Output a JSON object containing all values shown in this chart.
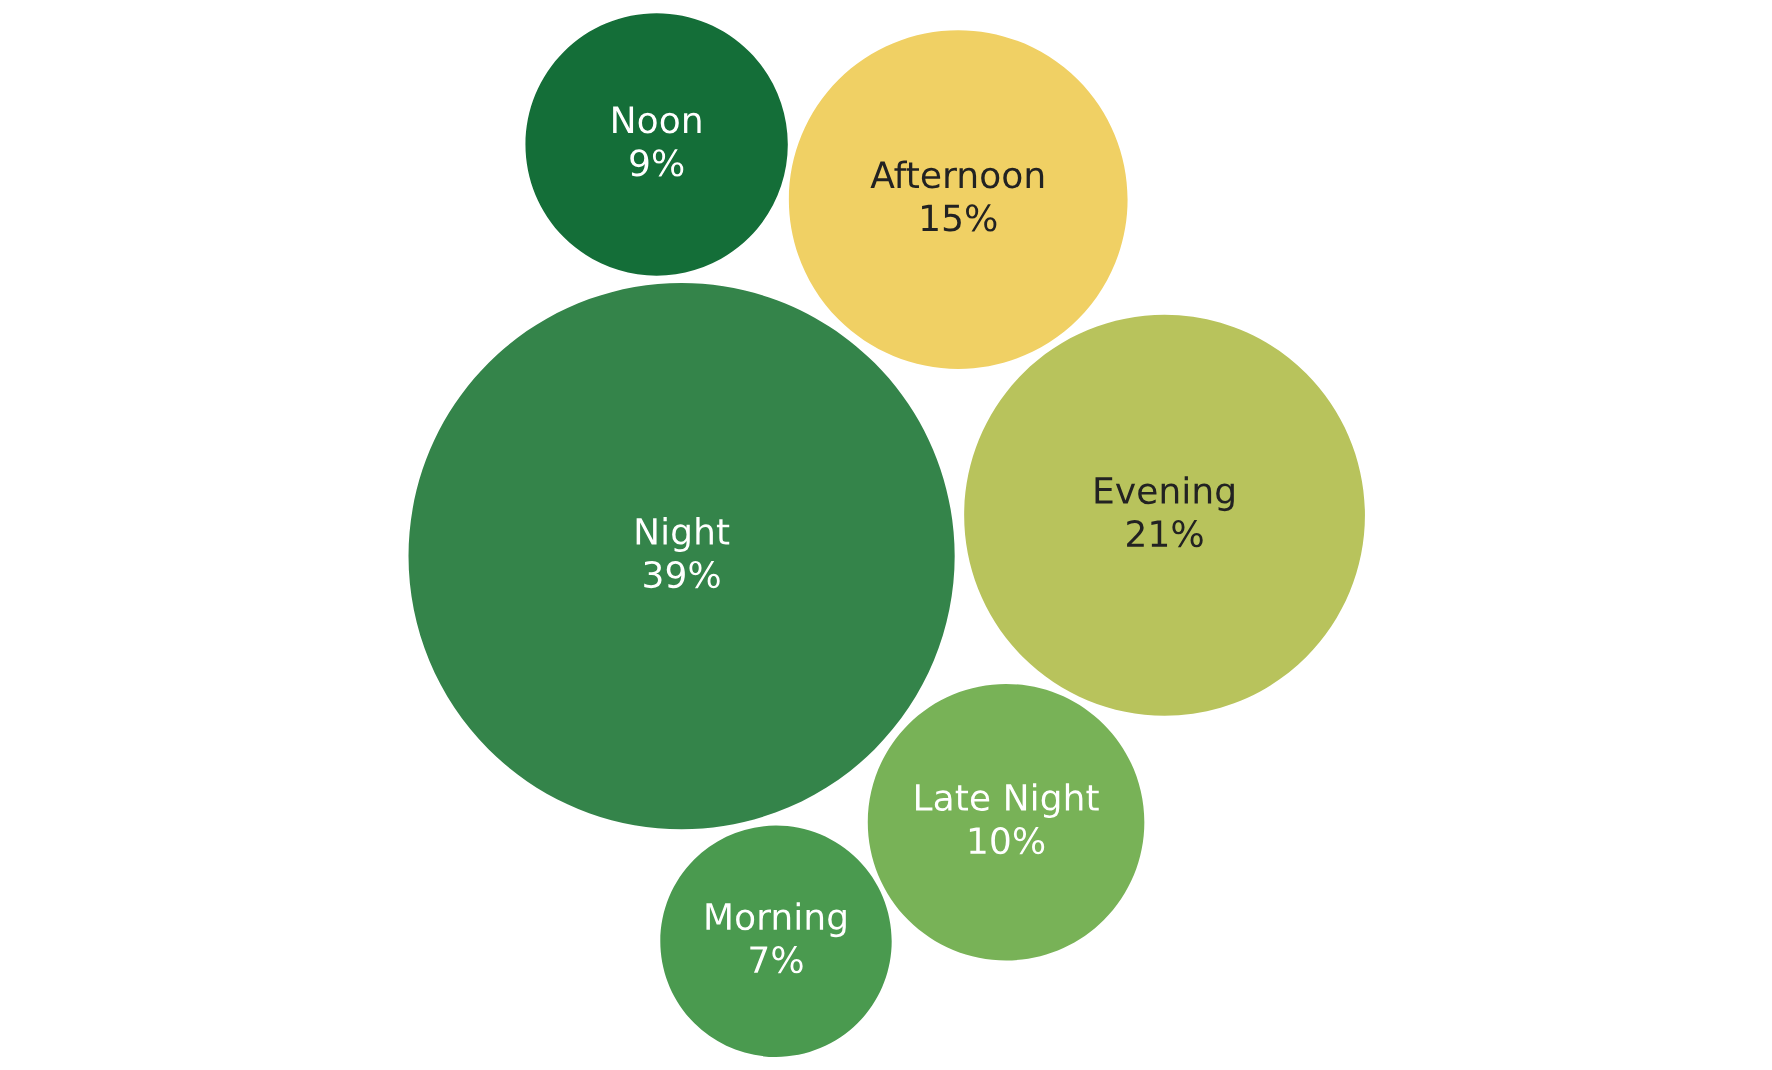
{
  "chart_data": {
    "type": "other",
    "categories": [
      "Night",
      "Evening",
      "Afternoon",
      "Late Night",
      "Noon",
      "Morning"
    ],
    "values": [
      39,
      21,
      15,
      10,
      9,
      7
    ],
    "value_labels": [
      "39%",
      "21%",
      "15%",
      "10%",
      "9%",
      "7%"
    ],
    "colors": [
      "#34844a",
      "#b8c35c",
      "#f0d064",
      "#78b257",
      "#146e38",
      "#4a9a4f"
    ]
  }
}
